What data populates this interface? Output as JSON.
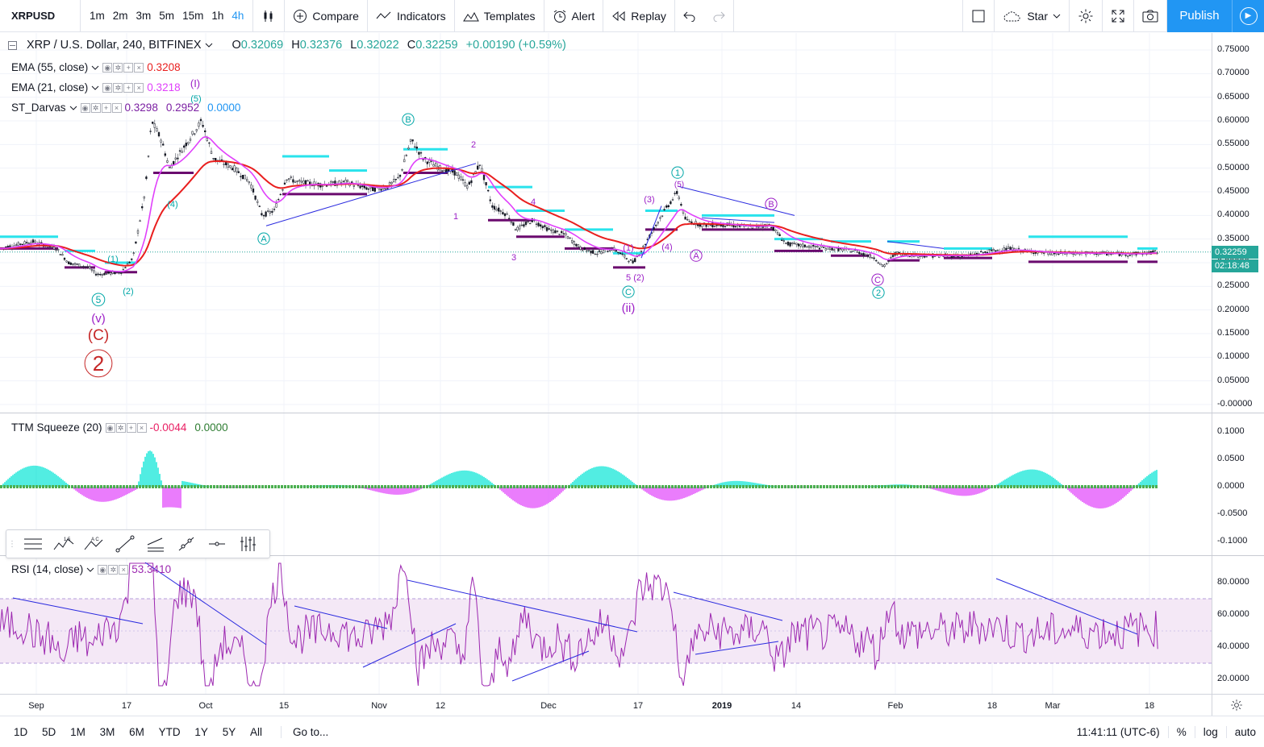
{
  "toolbar": {
    "symbol": "XRPUSD",
    "timeframes": [
      "1m",
      "2m",
      "3m",
      "5m",
      "15m",
      "1h",
      "4h"
    ],
    "active_timeframe": "4h",
    "compare": "Compare",
    "indicators": "Indicators",
    "templates": "Templates",
    "alert": "Alert",
    "replay": "Replay",
    "star": "Star",
    "publish": "Publish"
  },
  "legend": {
    "title": "XRP / U.S. Dollar, 240, BITFINEX",
    "open_label": "O",
    "open": "0.32069",
    "high_label": "H",
    "high": "0.32376",
    "low_label": "L",
    "low": "0.32022",
    "close_label": "C",
    "close": "0.32259",
    "change": "+0.00190 (+0.59%)",
    "ema55": "EMA (55, close)",
    "ema55_val": "0.3208",
    "ema21": "EMA (21, close)",
    "ema21_val": "0.3218",
    "darvas": "ST_Darvas",
    "darvas_v1": "0.3298",
    "darvas_v2": "0.2952",
    "darvas_v3": "0.0000",
    "ttm": "TTM Squeeze (20)",
    "ttm_v1": "-0.0044",
    "ttm_v2": "0.0000",
    "rsi": "RSI (14, close)",
    "rsi_val": "53.3410"
  },
  "price_axis": [
    "0.75000",
    "0.70000",
    "0.65000",
    "0.60000",
    "0.55000",
    "0.50000",
    "0.45000",
    "0.40000",
    "0.35000",
    "0.30000",
    "0.25000",
    "0.20000",
    "0.15000",
    "0.10000",
    "0.05000",
    "-0.00000"
  ],
  "price_tag": "0.32259",
  "countdown_tag": "02:18:48",
  "ttm_axis": [
    "0.1000",
    "0.0500",
    "0.0000",
    "-0.0500",
    "-0.1000"
  ],
  "rsi_axis": [
    "80.0000",
    "60.0000",
    "40.0000",
    "20.0000"
  ],
  "time_axis": [
    "Sep",
    "17",
    "Oct",
    "15",
    "Nov",
    "12",
    "Dec",
    "17",
    "2019",
    "14",
    "Feb",
    "18",
    "Mar",
    "18"
  ],
  "wave_labels": {
    "w5": "5",
    "v": "(v)",
    "C": "(C)",
    "two": "2",
    "p1": "(1)",
    "p2": "(2)",
    "p4": "(4)",
    "p5": "(5)",
    "I": "(I)",
    "A1": "A",
    "B1": "B",
    "n1": "1",
    "n2": "2",
    "n3": "3",
    "n4": "4",
    "C2": "C",
    "ii": "(ii)",
    "c5": "5",
    "c2": "(2)",
    "c1": "(1)",
    "c3": "(3)",
    "c4": "(4)",
    "one": "1",
    "d5": "(5)",
    "A2": "A",
    "B2": "B",
    "C3": "C",
    "two2": "2"
  },
  "bottom": {
    "ranges": [
      "1D",
      "5D",
      "1M",
      "3M",
      "6M",
      "YTD",
      "1Y",
      "5Y",
      "All"
    ],
    "goto": "Go to...",
    "time": "11:41:11 (UTC-6)",
    "pct": "%",
    "log": "log",
    "auto": "auto"
  },
  "colors": {
    "up": "#26a69a",
    "accent": "#2196f3",
    "ema55": "#e91e1e",
    "ema21": "#e040fb",
    "darvas_top": "#29e3ec",
    "darvas_bot": "#6a0a6e",
    "rsi": "#9c27b0",
    "wave_teal": "#00a7a7",
    "wave_purple": "#9c1fc7",
    "wave_red": "#c62828"
  }
}
